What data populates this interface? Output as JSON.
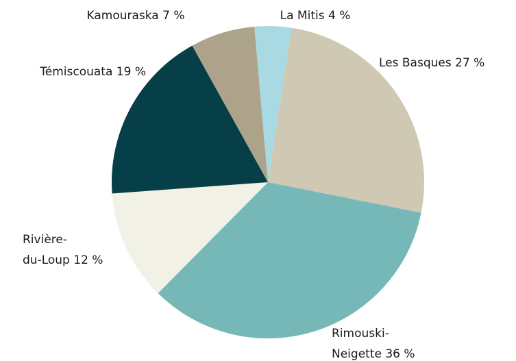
{
  "chart_data": {
    "type": "pie",
    "categories": [
      "La Mitis",
      "Les Basques",
      "Rimouski-Neigette",
      "Rivière-du-Loup",
      "Témiscouata",
      "Kamouraska"
    ],
    "values": [
      4,
      27,
      36,
      12,
      19,
      7
    ],
    "value_labels": [
      "4 %",
      "27 %",
      "36 %",
      "12 %",
      "19 %",
      "7 %"
    ],
    "colors": [
      "#a9d9e3",
      "#cfc8b3",
      "#76b8b8",
      "#f2f1e6",
      "#063f48",
      "#aca38a"
    ]
  }
}
